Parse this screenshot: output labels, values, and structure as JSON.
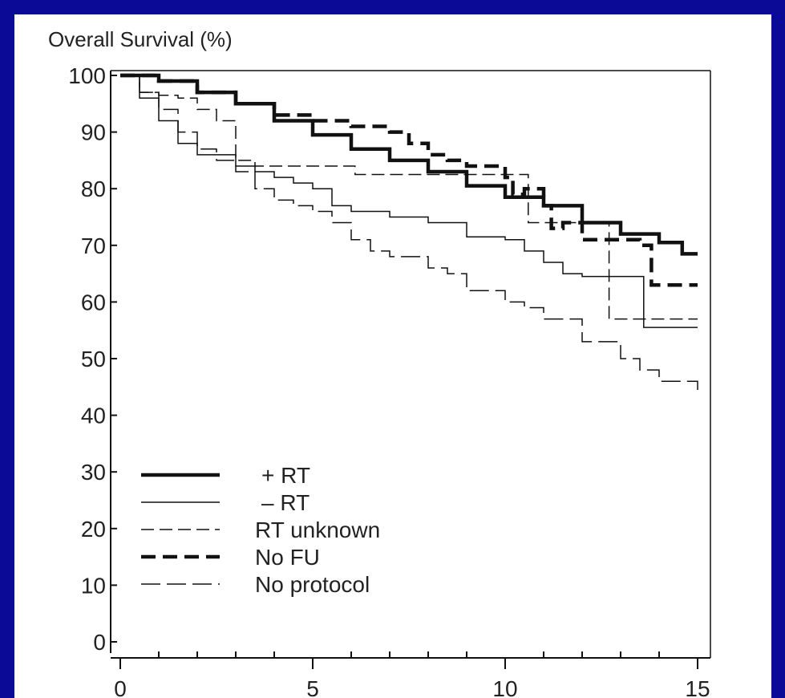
{
  "colors": {
    "frame": "#0a0a96",
    "panel": "#ffffff",
    "ink": "#111111"
  },
  "chart_data": {
    "type": "line",
    "ylabel": "Overall Survival (%)",
    "xlim": [
      0,
      15
    ],
    "ylim": [
      0,
      100
    ],
    "x_ticks": [
      0,
      5,
      10,
      15
    ],
    "y_ticks": [
      0,
      10,
      20,
      30,
      40,
      50,
      60,
      70,
      80,
      90,
      100
    ],
    "grid": false,
    "legend_position": "bottom-left",
    "series": [
      {
        "name": "+ RT",
        "style": "thick-solid",
        "points": [
          [
            0,
            100
          ],
          [
            1,
            99
          ],
          [
            2,
            97
          ],
          [
            3,
            95
          ],
          [
            4,
            92
          ],
          [
            5,
            89.5
          ],
          [
            6,
            87
          ],
          [
            7,
            85
          ],
          [
            8,
            83
          ],
          [
            9,
            80.5
          ],
          [
            10,
            78.5
          ],
          [
            11,
            77
          ],
          [
            12,
            74
          ],
          [
            13,
            72
          ],
          [
            14,
            70.5
          ],
          [
            14.6,
            68.5
          ],
          [
            15,
            68.5
          ]
        ]
      },
      {
        "name": "– RT",
        "style": "thin-solid",
        "points": [
          [
            0,
            100
          ],
          [
            0.5,
            96
          ],
          [
            1,
            92
          ],
          [
            1.5,
            88
          ],
          [
            2,
            86
          ],
          [
            3,
            84
          ],
          [
            3.5,
            83
          ],
          [
            4,
            82
          ],
          [
            4.5,
            81
          ],
          [
            5,
            80
          ],
          [
            5.5,
            77
          ],
          [
            6,
            76
          ],
          [
            7,
            75
          ],
          [
            8,
            74
          ],
          [
            9,
            71.5
          ],
          [
            10,
            71
          ],
          [
            10.5,
            69
          ],
          [
            11,
            67
          ],
          [
            11.5,
            65
          ],
          [
            12,
            64.5
          ],
          [
            13,
            64.5
          ],
          [
            13.5,
            64.5
          ],
          [
            13.6,
            55.5
          ],
          [
            15,
            55.5
          ]
        ]
      },
      {
        "name": "RT unknown",
        "style": "thin-dashed",
        "points": [
          [
            0,
            100
          ],
          [
            0.5,
            97
          ],
          [
            1,
            96.5
          ],
          [
            1.5,
            96
          ],
          [
            2,
            94
          ],
          [
            2.5,
            92
          ],
          [
            3,
            85
          ],
          [
            3.5,
            84
          ],
          [
            4,
            84
          ],
          [
            5,
            84
          ],
          [
            6,
            84
          ],
          [
            6.1,
            82.5
          ],
          [
            7,
            82.5
          ],
          [
            8,
            82.5
          ],
          [
            9,
            82.5
          ],
          [
            10,
            82.5
          ],
          [
            10.5,
            82.5
          ],
          [
            10.6,
            74
          ],
          [
            11,
            74
          ],
          [
            12,
            74
          ],
          [
            12.6,
            74
          ],
          [
            12.7,
            57
          ],
          [
            15,
            57
          ]
        ]
      },
      {
        "name": "No FU",
        "style": "thick-dashed",
        "points": [
          [
            0,
            100
          ],
          [
            1,
            99
          ],
          [
            2,
            97
          ],
          [
            3,
            95
          ],
          [
            4,
            93
          ],
          [
            5,
            92
          ],
          [
            6,
            91
          ],
          [
            7,
            90
          ],
          [
            7.5,
            88
          ],
          [
            8,
            86
          ],
          [
            8.5,
            85
          ],
          [
            9,
            84
          ],
          [
            10,
            82
          ],
          [
            10.2,
            79
          ],
          [
            10.5,
            80
          ],
          [
            11,
            77
          ],
          [
            11.2,
            73
          ],
          [
            11.5,
            74
          ],
          [
            12,
            71
          ],
          [
            13,
            71
          ],
          [
            13.5,
            70
          ],
          [
            13.8,
            63
          ],
          [
            15,
            63
          ]
        ]
      },
      {
        "name": "No protocol",
        "style": "thin-longdash",
        "points": [
          [
            0,
            100
          ],
          [
            0.5,
            97
          ],
          [
            1,
            94
          ],
          [
            1.5,
            90
          ],
          [
            2,
            87
          ],
          [
            2.5,
            85
          ],
          [
            3,
            83
          ],
          [
            3.5,
            80
          ],
          [
            4,
            78
          ],
          [
            4.5,
            77
          ],
          [
            5,
            76
          ],
          [
            5.5,
            74
          ],
          [
            6,
            71
          ],
          [
            6.5,
            69
          ],
          [
            7,
            68
          ],
          [
            8,
            66
          ],
          [
            8.5,
            65
          ],
          [
            9,
            62
          ],
          [
            10,
            60
          ],
          [
            10.5,
            59
          ],
          [
            11,
            57
          ],
          [
            12,
            53
          ],
          [
            13,
            50
          ],
          [
            13.5,
            48
          ],
          [
            14,
            46
          ],
          [
            14.5,
            46
          ],
          [
            15,
            44
          ]
        ]
      }
    ]
  }
}
